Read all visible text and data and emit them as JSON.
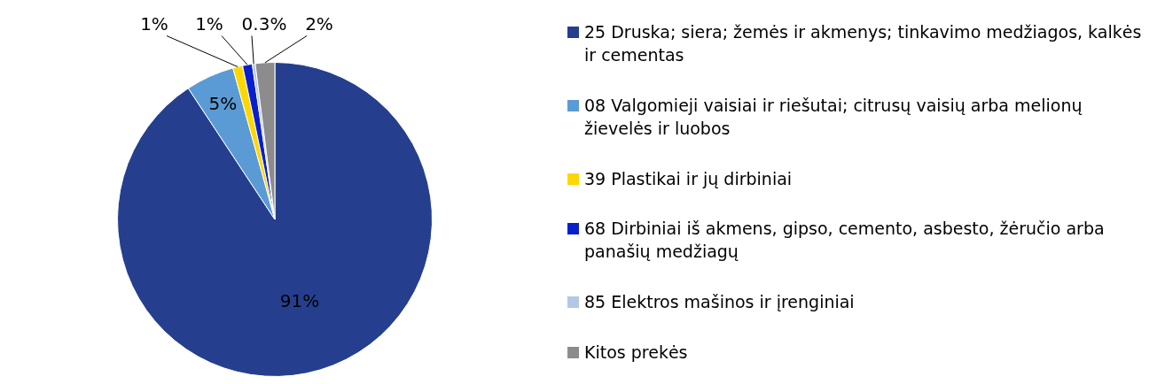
{
  "chart_data": {
    "type": "pie",
    "categories": [
      "25 Druska; siera; žemės ir akmenys; tinkavimo medžiagos, kalkės ir cementas",
      "08 Valgomieji vaisiai ir riešutai; citrusų vaisių arba melionų žievelės ir luobos",
      "39 Plastikai ir jų dirbiniai",
      "68 Dirbiniai iš akmens, gipso, cemento, asbesto, žėručio arba panašių medžiagų",
      "85 Elektros mašinos ir įrenginiai",
      "Kitos prekės"
    ],
    "values": [
      91,
      5,
      1,
      1,
      0.3,
      2
    ],
    "value_labels": [
      "91%",
      "5%",
      "1%",
      "1%",
      "0.3%",
      "2%"
    ],
    "colors": [
      "#253f8e",
      "#5b9bd5",
      "#ffd700",
      "#0a1fcc",
      "#b4c7e7",
      "#8c8c8c"
    ],
    "legend": "right"
  }
}
